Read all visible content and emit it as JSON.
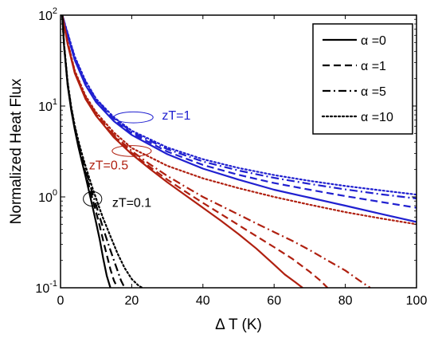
{
  "chart_data": {
    "type": "line",
    "xlabel": "Δ T (K)",
    "ylabel": "Normalized Heat Flux",
    "xlim": [
      0,
      100
    ],
    "ylim": [
      0.1,
      100
    ],
    "yscale": "log",
    "grid": false,
    "xticks": [
      0,
      20,
      40,
      60,
      80,
      100
    ],
    "xtick_labels": [
      "0",
      "20",
      "40",
      "60",
      "80",
      "100"
    ],
    "yticks": [
      0.1,
      1,
      10,
      100
    ],
    "ytick_labels": [
      {
        "base": "10",
        "exp": "-1"
      },
      {
        "base": "10",
        "exp": "0"
      },
      {
        "base": "10",
        "exp": "1"
      },
      {
        "base": "10",
        "exp": "2"
      }
    ],
    "legend": {
      "position": "top-right",
      "entries": [
        {
          "label": "α =0",
          "dash": "solid"
        },
        {
          "label": "α =1",
          "dash": "dashed"
        },
        {
          "label": "α =5",
          "dash": "dashdot"
        },
        {
          "label": "α =10",
          "dash": "dotted"
        }
      ]
    },
    "groups": [
      {
        "annotation": "zT=1",
        "color": "#2020d0",
        "series": [
          {
            "alpha": "0",
            "dash": "solid",
            "x": [
              0.5,
              2,
              4,
              7,
              10,
              15,
              20,
              30,
              40,
              50,
              60,
              70,
              80,
              90,
              100
            ],
            "y": [
              100,
              60,
              32,
              17,
              11,
              6.8,
              4.8,
              2.95,
              2.05,
              1.55,
              1.2,
              0.98,
              0.8,
              0.65,
              0.53
            ]
          },
          {
            "alpha": "1",
            "dash": "dashed",
            "x": [
              0.5,
              2,
              4,
              7,
              10,
              15,
              20,
              30,
              40,
              50,
              60,
              70,
              80,
              90,
              100
            ],
            "y": [
              100,
              62,
              33,
              18,
              11.5,
              7.1,
              5.0,
              3.15,
              2.25,
              1.75,
              1.42,
              1.2,
              1.02,
              0.88,
              0.76
            ]
          },
          {
            "alpha": "5",
            "dash": "dashdot",
            "x": [
              0.5,
              2,
              4,
              7,
              10,
              15,
              20,
              30,
              40,
              50,
              60,
              70,
              80,
              90,
              100
            ],
            "y": [
              100,
              63,
              34,
              18.5,
              11.8,
              7.3,
              5.2,
              3.35,
              2.45,
              1.95,
              1.62,
              1.39,
              1.21,
              1.07,
              0.96
            ]
          },
          {
            "alpha": "10",
            "dash": "dotted",
            "x": [
              0.5,
              2,
              4,
              7,
              10,
              15,
              20,
              30,
              40,
              50,
              60,
              70,
              80,
              90,
              100
            ],
            "y": [
              100,
              64,
              35,
              19,
              12,
              7.5,
              5.35,
              3.5,
              2.6,
              2.08,
              1.74,
              1.5,
              1.32,
              1.18,
              1.06
            ]
          }
        ]
      },
      {
        "annotation": "zT=0.5",
        "color": "#b02010",
        "series": [
          {
            "alpha": "0",
            "dash": "solid",
            "x": [
              0.5,
              2,
              4,
              7,
              10,
              15,
              20,
              25,
              30,
              35,
              40,
              45,
              50,
              55,
              60,
              63,
              66,
              68
            ],
            "y": [
              100,
              48,
              23,
              12,
              7.8,
              4.5,
              2.95,
              2.05,
              1.45,
              1.05,
              0.76,
              0.55,
              0.39,
              0.27,
              0.18,
              0.14,
              0.115,
              0.1
            ]
          },
          {
            "alpha": "1",
            "dash": "dashed",
            "x": [
              0.5,
              2,
              4,
              7,
              10,
              15,
              20,
              25,
              30,
              35,
              40,
              45,
              50,
              55,
              60,
              65,
              70,
              73,
              75
            ],
            "y": [
              100,
              49,
              23.5,
              12.3,
              8.0,
              4.65,
              3.05,
              2.15,
              1.55,
              1.15,
              0.86,
              0.65,
              0.49,
              0.37,
              0.28,
              0.21,
              0.15,
              0.12,
              0.1
            ]
          },
          {
            "alpha": "5",
            "dash": "dashdot",
            "x": [
              0.5,
              2,
              4,
              7,
              10,
              15,
              20,
              25,
              30,
              35,
              40,
              45,
              50,
              55,
              60,
              65,
              70,
              75,
              80,
              84,
              87
            ],
            "y": [
              100,
              50,
              24,
              12.6,
              8.2,
              4.8,
              3.2,
              2.3,
              1.7,
              1.3,
              1.0,
              0.8,
              0.64,
              0.51,
              0.41,
              0.33,
              0.26,
              0.2,
              0.155,
              0.12,
              0.1
            ]
          },
          {
            "alpha": "10",
            "dash": "dotted",
            "x": [
              0.5,
              2,
              4,
              7,
              10,
              15,
              20,
              30,
              40,
              50,
              60,
              70,
              80,
              90,
              100
            ],
            "y": [
              100,
              51,
              24.5,
              13,
              8.5,
              5.1,
              3.45,
              2.2,
              1.6,
              1.25,
              1.0,
              0.82,
              0.68,
              0.58,
              0.5
            ]
          }
        ]
      },
      {
        "annotation": "zT=0.1",
        "color": "#000000",
        "series": [
          {
            "alpha": "0",
            "dash": "solid",
            "x": [
              0.5,
              1,
              2,
              3,
              4,
              5,
              6,
              7,
              8,
              9,
              10,
              11,
              12,
              13,
              14
            ],
            "y": [
              100,
              45,
              17,
              9,
              5.5,
              3.6,
              2.45,
              1.7,
              1.15,
              0.78,
              0.52,
              0.34,
              0.21,
              0.135,
              0.1
            ]
          },
          {
            "alpha": "1",
            "dash": "dashed",
            "x": [
              0.5,
              1,
              2,
              3,
              4,
              5,
              6,
              7,
              8,
              9,
              10,
              11,
              12,
              13,
              14,
              15,
              16
            ],
            "y": [
              100,
              46,
              17.5,
              9.3,
              5.7,
              3.8,
              2.6,
              1.85,
              1.32,
              0.95,
              0.68,
              0.48,
              0.33,
              0.23,
              0.16,
              0.12,
              0.1
            ]
          },
          {
            "alpha": "5",
            "dash": "dashdot",
            "x": [
              0.5,
              1,
              2,
              3,
              4,
              5,
              6,
              7,
              8,
              9,
              10,
              11,
              12,
              13,
              14,
              15,
              16,
              17,
              18
            ],
            "y": [
              100,
              47,
              18,
              9.6,
              5.9,
              4.0,
              2.8,
              2.0,
              1.47,
              1.09,
              0.81,
              0.6,
              0.45,
              0.34,
              0.26,
              0.2,
              0.155,
              0.12,
              0.1
            ]
          },
          {
            "alpha": "10",
            "dash": "dotted",
            "x": [
              0.5,
              1,
              2,
              3,
              4,
              5,
              6,
              7,
              8,
              9,
              10,
              11,
              12,
              14,
              16,
              18,
              20,
              22,
              23
            ],
            "y": [
              100,
              48,
              18.5,
              9.9,
              6.1,
              4.2,
              3.0,
              2.2,
              1.65,
              1.25,
              0.96,
              0.74,
              0.58,
              0.37,
              0.24,
              0.165,
              0.125,
              0.105,
              0.1
            ]
          }
        ]
      }
    ],
    "ellipse_annotations": [
      {
        "cx": 20.5,
        "cy": 7.5,
        "rx": 5.5,
        "ry_decades": 0.06,
        "color": "#2020d0"
      },
      {
        "cx": 20.0,
        "cy": 3.2,
        "rx": 5.5,
        "ry_decades": 0.06,
        "color": "#b02010"
      },
      {
        "cx": 9.0,
        "cy": 0.95,
        "rx": 2.6,
        "ry_decades": 0.08,
        "color": "#000000"
      }
    ],
    "label_positions": [
      {
        "x": 28.5,
        "y": 7.1
      },
      {
        "x": 8.0,
        "y": 2.0
      },
      {
        "x": 14.5,
        "y": 0.78
      }
    ]
  }
}
